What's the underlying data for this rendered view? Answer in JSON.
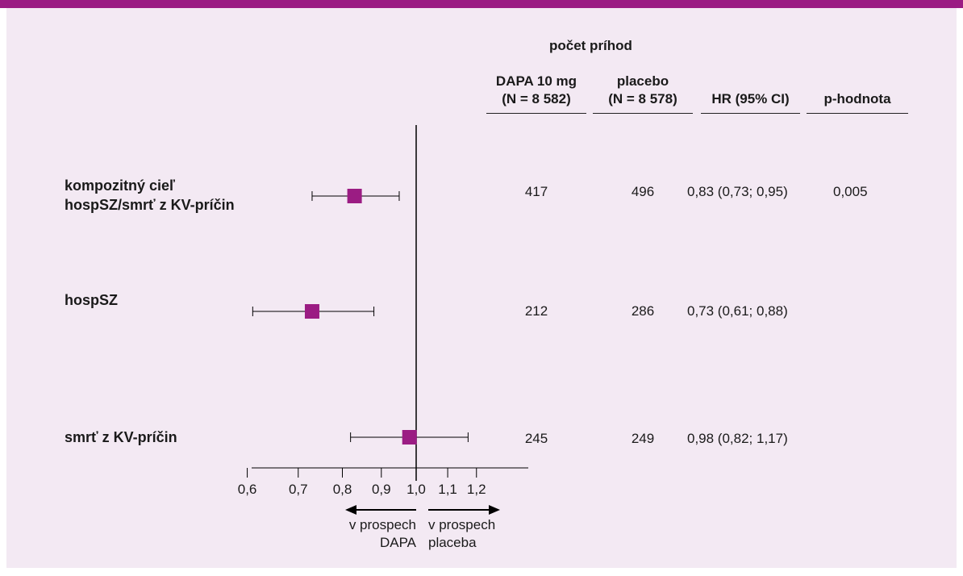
{
  "header": {
    "group_title": "počet príhod",
    "col_dapa": "DAPA 10 mg",
    "col_dapa_n": "(N = 8 582)",
    "col_placebo": "placebo",
    "col_placebo_n": "(N = 8 578)",
    "col_hr": "HR (95% CI)",
    "col_p": "p-hodnota"
  },
  "rows": [
    {
      "label_line1": "kompozitný cieľ",
      "label_line2": "hospSZ/smrť z KV-príčin",
      "dapa": "417",
      "placebo": "496",
      "hr": "0,83 (0,73; 0,95)",
      "p": "0,005"
    },
    {
      "label_line1": "hospSZ",
      "label_line2": "",
      "dapa": "212",
      "placebo": "286",
      "hr": "0,73 (0,61; 0,88)",
      "p": ""
    },
    {
      "label_line1": "smrť z KV-príčin",
      "label_line2": "",
      "dapa": "245",
      "placebo": "249",
      "hr": "0,98 (0,82; 1,17)",
      "p": ""
    }
  ],
  "favors": {
    "left_line1": "v prospech",
    "left_line2": "DAPA",
    "right_line1": "v prospech",
    "right_line2": "placeba"
  },
  "chart_data": {
    "type": "scatter",
    "title": "",
    "xlabel": "",
    "ylabel": "",
    "x_ticks": [
      0.6,
      0.7,
      0.8,
      0.9,
      1.0,
      1.1,
      1.2
    ],
    "x_tick_labels": [
      "0,6",
      "0,7",
      "0,8",
      "0,9",
      "1,0",
      "1,1",
      "1,2"
    ],
    "xlim": [
      0.6,
      1.2
    ],
    "log_scale": true,
    "reference_line": 1.0,
    "series": [
      {
        "points": [
          {
            "category": "kompozitný cieľ hospSZ/smrť z KV-príčin",
            "hr": 0.83,
            "ci_low": 0.73,
            "ci_high": 0.95
          },
          {
            "category": "hospSZ",
            "hr": 0.73,
            "ci_low": 0.61,
            "ci_high": 0.88
          },
          {
            "category": "smrť z KV-príčin",
            "hr": 0.98,
            "ci_low": 0.82,
            "ci_high": 1.17
          }
        ]
      }
    ],
    "colors": {
      "marker": "#9b1c83",
      "accent_bar": "#9b1c83",
      "panel_bg": "#f3e9f3"
    }
  }
}
